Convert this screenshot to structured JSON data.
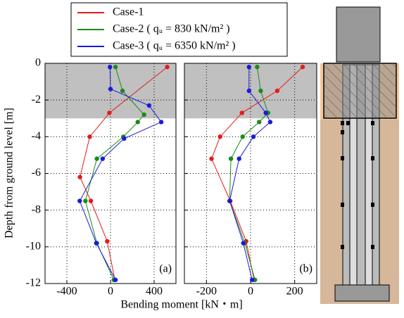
{
  "chart_data": [
    {
      "type": "line",
      "annotation": "(a)",
      "ylabel": "Depth from ground level [m]",
      "xlabel": "Bending moment [kN・m]",
      "xlim": [
        -600,
        600
      ],
      "xticks": [
        -400,
        0,
        400
      ],
      "ylim": [
        -12,
        0
      ],
      "yticks": [
        0,
        -2,
        -4,
        -6,
        -8,
        -10,
        -12
      ],
      "ytick_labels": true,
      "grid": true,
      "shaded_range": [
        -3,
        0
      ],
      "series": [
        {
          "name": "Case-1",
          "color": "#e41a1c",
          "x": [
            520,
            -10,
            -190,
            -280,
            -180,
            -30,
            40
          ],
          "values": [
            -0.2,
            -2.7,
            -4.0,
            -6.2,
            -7.5,
            -9.7,
            -11.8
          ]
        },
        {
          "name": "Case-2 ( qᵤ = 830 kN/m² )",
          "color": "#1a8a1a",
          "x": [
            46,
            110,
            308,
            250,
            118,
            -125,
            -230,
            -125,
            30
          ],
          "values": [
            -0.2,
            -1.5,
            -2.8,
            -3.2,
            -4.0,
            -5.2,
            -7.5,
            -9.8,
            -11.8
          ]
        },
        {
          "name": "Case-3 ( qᵤ = 6350 kN/m² )",
          "color": "#1a1adc",
          "x": [
            -5,
            0,
            354,
            465,
            125,
            -72,
            -282,
            -130,
            46
          ],
          "values": [
            -0.2,
            -1.4,
            -2.3,
            -3.2,
            -4.1,
            -5.2,
            -7.5,
            -9.8,
            -11.8
          ]
        }
      ]
    },
    {
      "type": "line",
      "annotation": "(b)",
      "xlim": [
        -300,
        300
      ],
      "xticks": [
        -200,
        0,
        200
      ],
      "ylim": [
        -12,
        0
      ],
      "yticks": [
        0,
        -2,
        -4,
        -6,
        -8,
        -10,
        -12
      ],
      "ytick_labels": false,
      "grid": true,
      "shaded_range": [
        -3,
        0
      ],
      "series": [
        {
          "color": "#e41a1c",
          "x": [
            236,
            121,
            -39,
            -138,
            -177,
            -92,
            -20,
            16
          ],
          "values": [
            -0.2,
            -1.5,
            -2.7,
            -4.0,
            -5.2,
            -7.5,
            -9.7,
            -11.8
          ]
        },
        {
          "color": "#1a8a1a",
          "x": [
            30,
            46,
            79,
            39,
            -36,
            -89,
            -95,
            -26,
            20
          ],
          "values": [
            -0.2,
            -1.5,
            -2.7,
            -3.2,
            -4.0,
            -5.2,
            -7.5,
            -9.8,
            -11.8
          ]
        },
        {
          "color": "#1a1adc",
          "x": [
            -7,
            -7,
            69,
            89,
            13,
            -52,
            -95,
            -33,
            7
          ],
          "values": [
            -0.2,
            -1.5,
            -2.7,
            -3.2,
            -4.0,
            -5.2,
            -7.5,
            -9.8,
            -11.8
          ]
        }
      ]
    }
  ]
}
